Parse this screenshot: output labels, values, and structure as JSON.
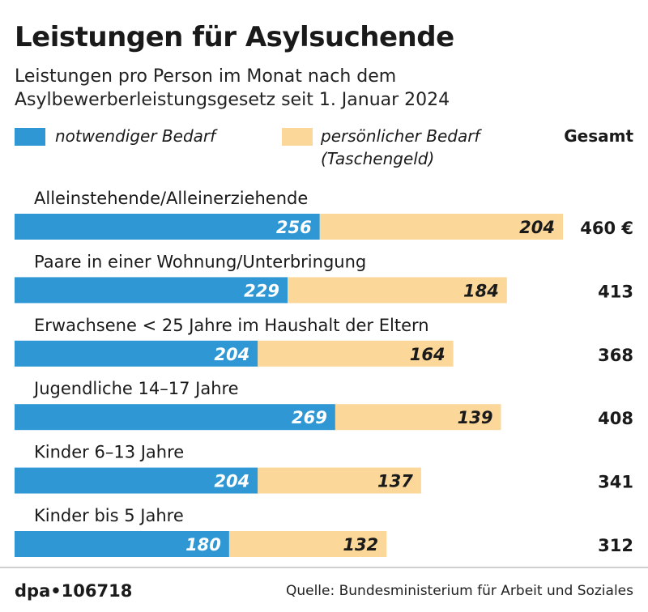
{
  "title": "Leistungen für Asylsuchende",
  "subtitle_line1": "Leistungen pro Person im Monat nach dem",
  "subtitle_line2": "Asylbewerberleistungsgesetz seit 1. Januar 2024",
  "legend": {
    "series1": "notwendiger Bedarf",
    "series2_line1": "persönlicher Bedarf",
    "series2_line2": "(Taschengeld)",
    "total_header": "Gesamt"
  },
  "colors": {
    "series1": "#2f97d4",
    "series2": "#fbd79a"
  },
  "chart_data": {
    "type": "bar",
    "orientation": "horizontal",
    "stacked": true,
    "categories": [
      "Alleinstehende/Alleinerziehende",
      "Paare in einer Wohnung/Unterbringung",
      "Erwachsene < 25 Jahre im Haushalt der Eltern",
      "Jugendliche 14–17 Jahre",
      "Kinder 6–13 Jahre",
      "Kinder bis 5 Jahre"
    ],
    "series": [
      {
        "name": "notwendiger Bedarf",
        "values": [
          256,
          229,
          204,
          269,
          204,
          180
        ]
      },
      {
        "name": "persönlicher Bedarf (Taschengeld)",
        "values": [
          204,
          184,
          164,
          139,
          137,
          132
        ]
      }
    ],
    "totals": [
      "460 €",
      "413",
      "368",
      "408",
      "341",
      "312"
    ],
    "xlim": [
      0,
      460
    ]
  },
  "footer": {
    "dpa_id": "dpa•106718",
    "source": "Quelle: Bundesministerium für Arbeit und Soziales"
  }
}
